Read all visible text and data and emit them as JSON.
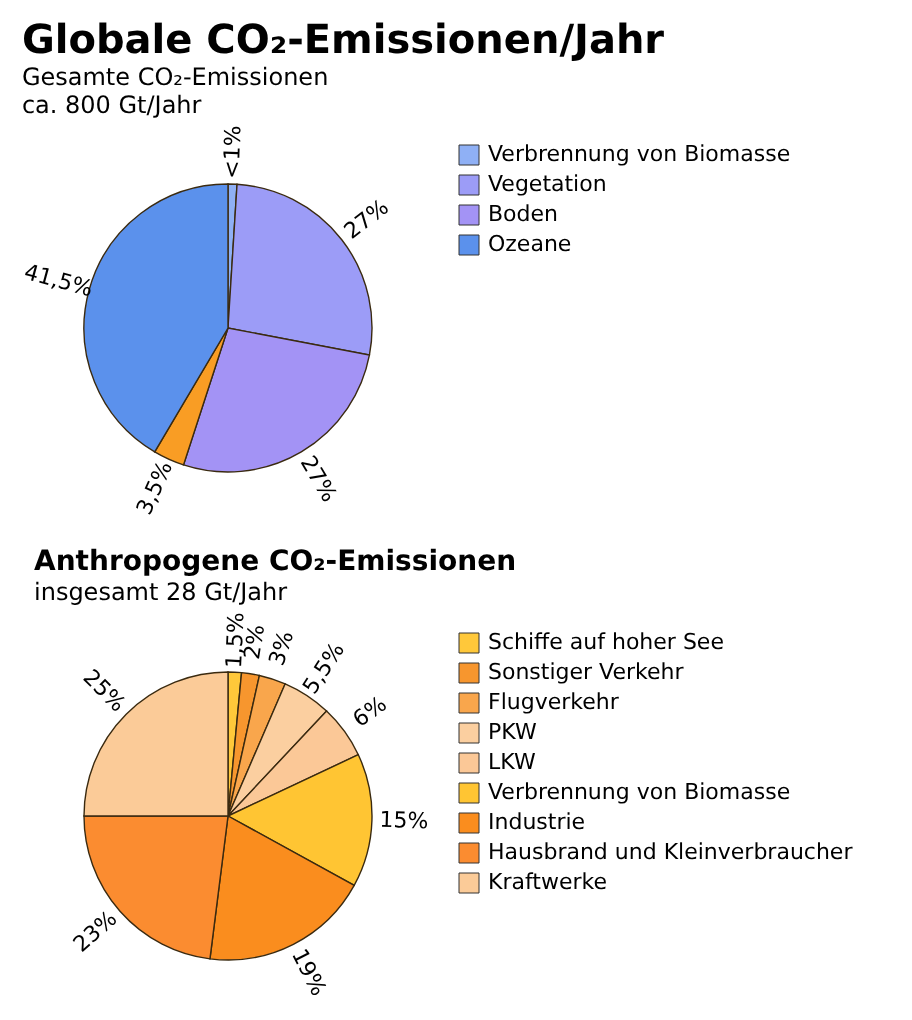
{
  "chart_data": [
    {
      "type": "pie",
      "title": "Globale CO₂-Emissionen/Jahr",
      "subtitle": "Gesamte CO₂-Emissionen",
      "annotations": [
        "ca. 800 Gt/Jahr"
      ],
      "categories": [
        "Verbrennung von Biomasse",
        "Vegetation",
        "Boden",
        null,
        "Ozeane"
      ],
      "values": [
        1,
        27,
        27,
        3.5,
        41.5
      ],
      "value_labels": [
        "<1%",
        "27%",
        "27%",
        "3,5%",
        "41,5%"
      ],
      "colors": [
        "#8fb0f5",
        "#9c9cf7",
        "#a393f5",
        "#f99d24",
        "#5b91ec"
      ],
      "legend": "right"
    },
    {
      "type": "pie",
      "title": "Anthropogene CO₂-Emissionen",
      "annotations": [
        "insgesamt 28 Gt/Jahr"
      ],
      "categories": [
        "Schiffe auf hoher See",
        "Sonstiger Verkehr",
        "Flugverkehr",
        "PKW",
        "LKW",
        "Verbrennung von Biomasse",
        "Industrie",
        "Hausbrand und Kleinverbraucher",
        "Kraftwerke"
      ],
      "values": [
        1.5,
        2,
        3,
        5.5,
        6,
        15,
        19,
        23,
        25
      ],
      "value_labels": [
        "1,5%",
        "2%",
        "3%",
        "5,5%",
        "6%",
        "15%",
        "19%",
        "23%",
        "25%"
      ],
      "colors": [
        "#ffc83a",
        "#f7962e",
        "#f9a64c",
        "#fbcfa0",
        "#fbc897",
        "#ffc533",
        "#fa8d1e",
        "#fb8c30",
        "#fbcb98"
      ],
      "legend": "right"
    }
  ]
}
